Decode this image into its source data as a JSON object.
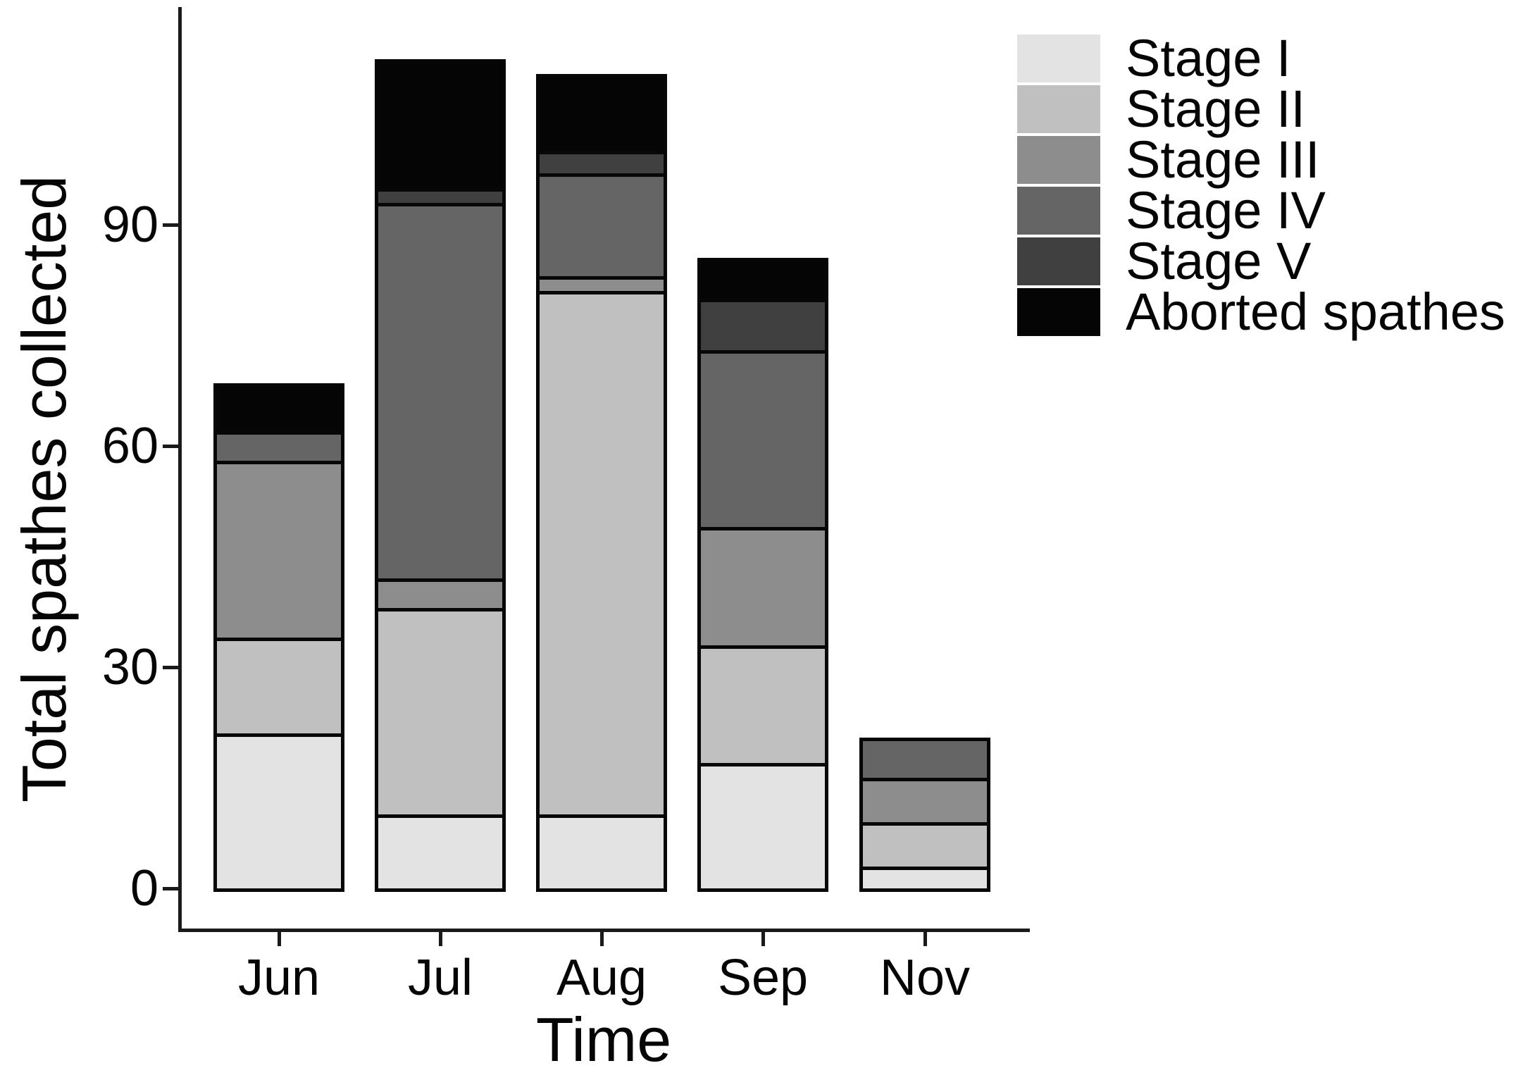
{
  "chart_data": {
    "type": "bar",
    "stacked": true,
    "title": "",
    "xlabel": "Time",
    "ylabel": "Total spathes collected",
    "categories": [
      "Jun",
      "Jul",
      "Aug",
      "Sep",
      "Nov"
    ],
    "series": [
      {
        "name": "Stage I",
        "color": "#e3e3e3",
        "values": [
          21,
          10,
          10,
          17,
          3
        ]
      },
      {
        "name": "Stage II",
        "color": "#c0c0c0",
        "values": [
          13,
          28,
          71,
          16,
          6
        ]
      },
      {
        "name": "Stage III",
        "color": "#8d8d8d",
        "values": [
          24,
          4,
          2,
          16,
          6
        ]
      },
      {
        "name": "Stage IV",
        "color": "#656565",
        "values": [
          4,
          51,
          14,
          24,
          5
        ]
      },
      {
        "name": "Stage V",
        "color": "#404040",
        "values": [
          0,
          2,
          3,
          7,
          0
        ]
      },
      {
        "name": "Aborted spathes",
        "color": "#050505",
        "values": [
          6,
          17,
          10,
          5,
          0
        ]
      }
    ],
    "totals": [
      68,
      112,
      110,
      85,
      20
    ],
    "y_ticks": [
      0,
      30,
      60,
      90
    ],
    "y_tick_labels": [
      "0",
      "30",
      "60",
      "90"
    ],
    "ylim": [
      0,
      119
    ],
    "grid": false,
    "legend_position": "top-right",
    "axis_color": "#1a1a1a",
    "bar_outline_color": "#070707"
  }
}
